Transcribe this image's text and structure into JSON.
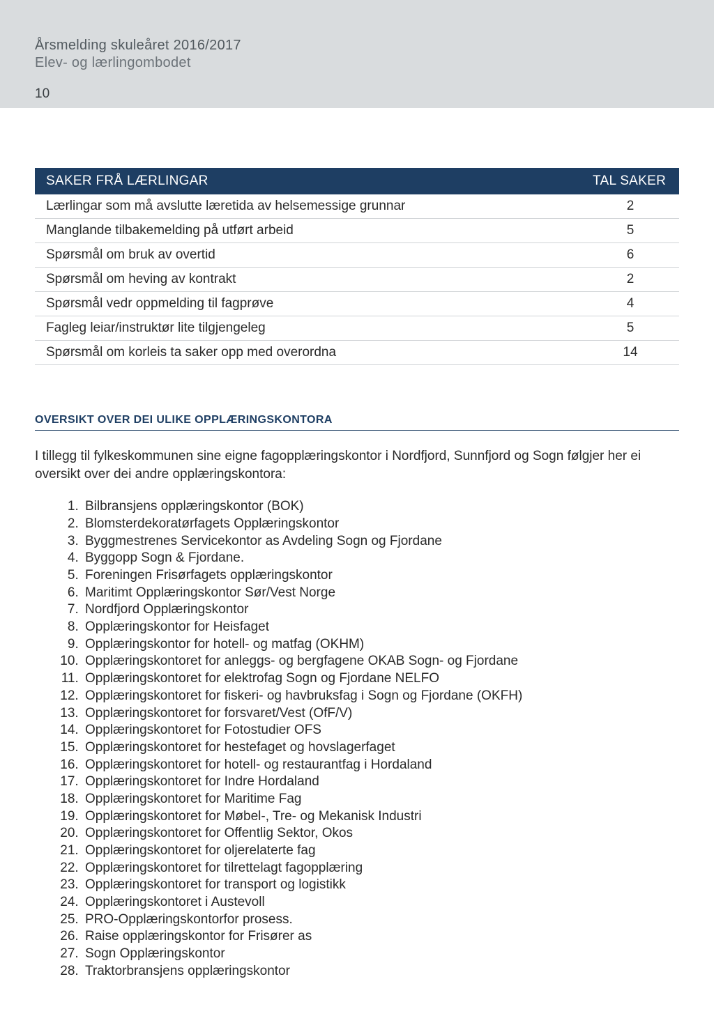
{
  "page": {
    "header_title": "Årsmelding skuleåret 2016/2017",
    "header_sub": "Elev- og lærlingombodet",
    "page_number": "10"
  },
  "table": {
    "header_label": "SAKER FRÅ LÆRLINGAR",
    "header_count": "TAL SAKER",
    "rows": [
      {
        "label": "Lærlingar som må avslutte læretida av helsemessige grunnar",
        "count": "2"
      },
      {
        "label": "Manglande tilbakemelding på utført arbeid",
        "count": "5"
      },
      {
        "label": "Spørsmål om bruk av overtid",
        "count": "6"
      },
      {
        "label": "Spørsmål om heving av kontrakt",
        "count": "2"
      },
      {
        "label": "Spørsmål vedr oppmelding til fagprøve",
        "count": "4"
      },
      {
        "label": "Fagleg leiar/instruktør lite tilgjengeleg",
        "count": "5"
      },
      {
        "label": "Spørsmål om korleis ta saker opp med overordna",
        "count": "14"
      }
    ]
  },
  "section": {
    "heading": "OVERSIKT OVER DEI ULIKE OPPLÆRINGSKONTORA",
    "intro": "I tillegg til fylkeskommunen sine eigne fagopplæringskontor i Nordfjord, Sunnfjord og Sogn følgjer her ei oversikt over dei andre opplæringskontora:",
    "offices": [
      "Bilbransjens opplæringskontor (BOK)",
      "Blomsterdekoratørfagets Opplæringskontor",
      "Byggmestrenes Servicekontor as Avdeling Sogn og Fjordane",
      "Byggopp Sogn & Fjordane.",
      "Foreningen Frisørfagets opplæringskontor",
      "Maritimt Opplæringskontor Sør/Vest Norge",
      "Nordfjord Opplæringskontor",
      "Opplæringskontor for Heisfaget",
      "Opplæringskontor for hotell- og matfag (OKHM)",
      "Opplæringskontoret for anleggs- og bergfagene OKAB Sogn- og Fjordane",
      "Opplæringskontoret for elektrofag Sogn og Fjordane NELFO",
      "Opplæringskontoret for fiskeri- og havbruksfag i Sogn og Fjordane (OKFH)",
      "Opplæringskontoret for forsvaret/Vest (OfF/V)",
      "Opplæringskontoret for Fotostudier OFS",
      "Opplæringskontoret for hestefaget og hovslagerfaget",
      "Opplæringskontoret for hotell- og restaurantfag i Hordaland",
      "Opplæringskontoret for Indre Hordaland",
      "Opplæringskontoret for Maritime Fag",
      "Opplæringskontoret for Møbel-, Tre- og Mekanisk Industri",
      "Opplæringskontoret for Offentlig Sektor, Okos",
      "Opplæringskontoret for oljerelaterte fag",
      "Opplæringskontoret for tilrettelagt fagopplæring",
      "Opplæringskontoret for transport og logistikk",
      "Opplæringskontoret i Austevoll",
      "PRO-Opplæringskontorfor prosess.",
      "Raise opplæringskontor for Frisører as",
      "Sogn Opplæringskontor",
      "Traktorbransjens opplæringskontor"
    ]
  },
  "colors": {
    "header_bg": "#d9dcde",
    "table_header_bg": "#1e3e63",
    "table_header_text": "#ffffff",
    "border": "#d0d3d6",
    "heading_color": "#1e3e63",
    "body_text": "#2a2a2a"
  }
}
